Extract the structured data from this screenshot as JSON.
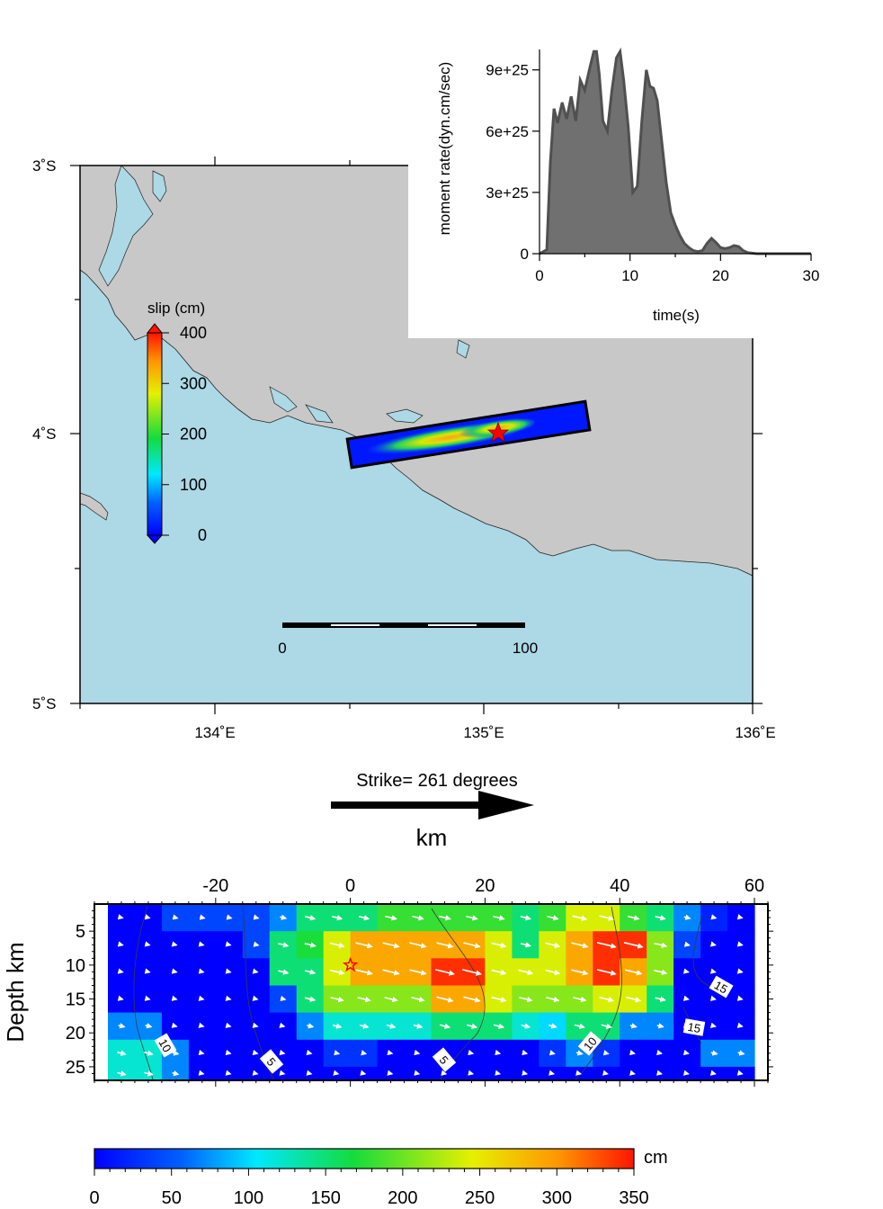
{
  "map": {
    "lat_labels": [
      "3˚S",
      "4˚S",
      "5˚S"
    ],
    "lon_labels": [
      "134˚E",
      "135˚E",
      "136˚E"
    ],
    "lon_range": [
      133.5,
      136.0
    ],
    "lat_range": [
      -5.0,
      -3.0
    ],
    "land_color": "#c8c8c8",
    "sea_color": "#add8e6",
    "epicenter_symbol": "red-star",
    "scale_bar": {
      "labels": [
        "0",
        "100"
      ]
    },
    "slip_colorbar": {
      "title": "slip (cm)",
      "tick_labels": [
        "0",
        "100",
        "200",
        "300",
        "400"
      ],
      "range": [
        0,
        400
      ]
    }
  },
  "chart_data": [
    {
      "type": "area",
      "xlabel": "time(s)",
      "ylabel": "moment rate(dyn.cm/sec)",
      "x_tick_labels": [
        "0",
        "10",
        "20",
        "30"
      ],
      "y_tick_labels": [
        "0",
        "3e+25",
        "6e+25",
        "9e+25"
      ],
      "xlim": [
        0,
        30
      ],
      "ylim": [
        0,
        1e+26
      ],
      "x": [
        0,
        0.8,
        1.2,
        1.6,
        2.0,
        2.5,
        3.0,
        3.5,
        4.0,
        4.5,
        5.0,
        5.5,
        6.0,
        6.3,
        6.6,
        7.0,
        7.5,
        8.0,
        8.5,
        8.9,
        9.3,
        9.8,
        10.3,
        10.8,
        11.3,
        11.8,
        12.2,
        12.6,
        13.0,
        13.5,
        14.0,
        14.5,
        15.0,
        15.5,
        16.0,
        16.5,
        17.0,
        17.5,
        18.0,
        18.5,
        19.0,
        19.5,
        20.0,
        20.5,
        21.0,
        21.5,
        22.0,
        22.5,
        23.0,
        24.0,
        25.0,
        26.0,
        28.0,
        30.0
      ],
      "y": [
        0,
        2e+24,
        4.5e+25,
        7.1e+25,
        6.4e+25,
        7.4e+25,
        6.6e+25,
        7.7e+25,
        6.5e+25,
        8.5e+25,
        8e+25,
        9e+25,
        9.9e+25,
        9.9e+25,
        8.8e+25,
        6.5e+25,
        6e+25,
        8e+25,
        9.6e+25,
        9.9e+25,
        8.5e+25,
        6.2e+25,
        3e+25,
        3.3e+25,
        6.5e+25,
        9e+25,
        8.2e+25,
        8.1e+25,
        7.5e+25,
        5.5e+25,
        3.5e+25,
        2e+25,
        1.4e+25,
        9e+24,
        5e+24,
        3e+24,
        1.5e+24,
        1e+24,
        1.5e+24,
        5e+24,
        7.5e+24,
        5.5e+24,
        3e+24,
        2.5e+24,
        3e+24,
        4e+24,
        3.5e+24,
        1.5e+24,
        5e+23,
        0,
        0,
        0,
        0,
        0
      ],
      "fill_color": "#707070",
      "line_color": "#505050"
    },
    {
      "type": "heatmap",
      "title": "Strike= 261 degrees",
      "xlabel": "km",
      "ylabel": "Depth km",
      "x_tick_labels": [
        "-20",
        "0",
        "20",
        "40",
        "60"
      ],
      "y_tick_labels": [
        "5",
        "10",
        "15",
        "20",
        "25"
      ],
      "xlim": [
        -38,
        62
      ],
      "ylim": [
        1,
        27
      ],
      "x_centers": [
        -34,
        -30,
        -26,
        -22,
        -18,
        -14,
        -10,
        -6,
        -2,
        2,
        6,
        10,
        14,
        18,
        22,
        26,
        30,
        34,
        38,
        42,
        46,
        50,
        54,
        58
      ],
      "y_edges": [
        1,
        5,
        9,
        13,
        17,
        21,
        25,
        27
      ],
      "values": [
        [
          0,
          0,
          40,
          40,
          40,
          40,
          70,
          150,
          150,
          150,
          180,
          180,
          180,
          180,
          180,
          150,
          180,
          240,
          240,
          180,
          150,
          70,
          20,
          0
        ],
        [
          0,
          0,
          0,
          0,
          0,
          40,
          150,
          170,
          240,
          290,
          290,
          290,
          290,
          290,
          240,
          150,
          240,
          290,
          340,
          340,
          210,
          40,
          0,
          0
        ],
        [
          0,
          0,
          0,
          0,
          0,
          0,
          150,
          150,
          240,
          290,
          290,
          290,
          340,
          340,
          240,
          240,
          240,
          290,
          340,
          290,
          210,
          0,
          0,
          0
        ],
        [
          0,
          0,
          0,
          0,
          0,
          0,
          40,
          150,
          210,
          210,
          210,
          210,
          290,
          290,
          240,
          210,
          210,
          210,
          240,
          240,
          150,
          0,
          0,
          0
        ],
        [
          70,
          70,
          0,
          0,
          0,
          0,
          0,
          70,
          120,
          120,
          120,
          120,
          150,
          150,
          150,
          120,
          100,
          150,
          150,
          70,
          70,
          0,
          0,
          0
        ],
        [
          120,
          120,
          70,
          0,
          0,
          0,
          0,
          0,
          30,
          30,
          0,
          0,
          0,
          0,
          0,
          0,
          30,
          70,
          30,
          0,
          0,
          0,
          70,
          70
        ],
        [
          120,
          120,
          70,
          0,
          0,
          0,
          0,
          0,
          0,
          0,
          0,
          0,
          0,
          0,
          0,
          0,
          0,
          0,
          0,
          0,
          0,
          0,
          0,
          0
        ]
      ],
      "contour_labels": [
        "10",
        "5",
        "5",
        "10",
        "15",
        "15"
      ],
      "hypocenter": {
        "x": 0,
        "y": 10,
        "symbol": "red-star"
      },
      "colorbar": {
        "unit": "cm",
        "tick_labels": [
          "0",
          "50",
          "100",
          "150",
          "200",
          "250",
          "300",
          "350"
        ],
        "range": [
          0,
          350
        ]
      }
    }
  ]
}
